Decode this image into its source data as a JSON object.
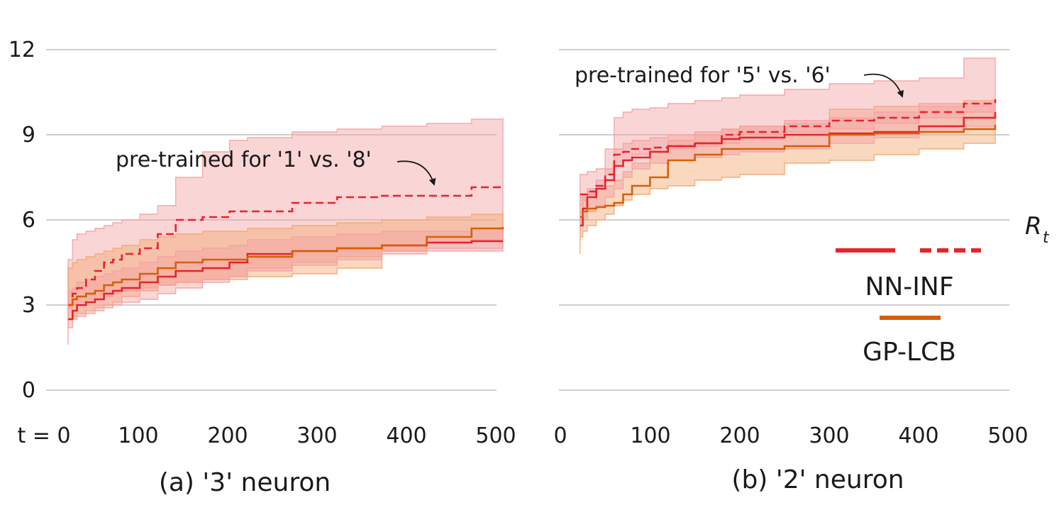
{
  "chart_data": [
    {
      "type": "line",
      "panel": "a",
      "caption": "(a) '3' neuron",
      "x_tick_labels": [
        "t = 0",
        "100",
        "200",
        "300",
        "400",
        "500"
      ],
      "y_tick_labels": [
        "0",
        "3",
        "6",
        "9",
        "12"
      ],
      "xlim": [
        0,
        500
      ],
      "ylim": [
        0,
        12
      ],
      "annotation": "pre-trained for '1' vs. '8'",
      "series": [
        {
          "name": "NN-INF",
          "style": "solid",
          "color": "#e8232a",
          "x": [
            0,
            5,
            10,
            20,
            30,
            40,
            50,
            60,
            80,
            100,
            120,
            150,
            180,
            200,
            250,
            300,
            350,
            400,
            450,
            485
          ],
          "y": [
            2.5,
            2.8,
            3.0,
            3.1,
            3.2,
            3.4,
            3.5,
            3.6,
            3.8,
            4.0,
            4.2,
            4.3,
            4.5,
            4.8,
            4.9,
            5.0,
            5.1,
            5.2,
            5.25,
            5.25
          ],
          "lower": [
            1.6,
            2.2,
            2.5,
            2.6,
            2.7,
            2.8,
            2.9,
            3.0,
            3.1,
            3.2,
            3.4,
            3.6,
            3.8,
            4.0,
            4.2,
            4.4,
            4.6,
            4.8,
            4.9,
            4.9
          ],
          "upper": [
            3.5,
            3.6,
            3.8,
            3.9,
            4.0,
            4.1,
            4.2,
            4.3,
            4.5,
            4.7,
            4.9,
            5.0,
            5.1,
            5.3,
            5.4,
            5.5,
            5.6,
            5.6,
            5.7,
            5.7
          ]
        },
        {
          "name": "NN-INF",
          "style": "dashed",
          "color": "#e8232a",
          "x": [
            0,
            5,
            10,
            20,
            30,
            40,
            50,
            60,
            80,
            100,
            120,
            150,
            180,
            200,
            250,
            300,
            350,
            400,
            450,
            485
          ],
          "y": [
            3.0,
            3.4,
            3.6,
            3.9,
            4.2,
            4.5,
            4.6,
            4.8,
            5.0,
            5.5,
            6.0,
            6.1,
            6.3,
            6.3,
            6.6,
            6.8,
            6.85,
            6.85,
            7.15,
            7.15
          ],
          "lower": [
            2.8,
            2.9,
            3.0,
            3.1,
            3.2,
            3.2,
            3.3,
            3.4,
            3.5,
            3.6,
            3.7,
            3.8,
            3.9,
            4.0,
            4.3,
            4.5,
            4.7,
            4.9,
            5.0,
            5.0
          ],
          "upper": [
            4.6,
            5.3,
            5.5,
            5.6,
            5.7,
            5.8,
            5.9,
            6.0,
            6.2,
            6.5,
            7.5,
            8.4,
            8.8,
            8.9,
            9.1,
            9.2,
            9.3,
            9.4,
            9.55,
            9.6
          ]
        },
        {
          "name": "GP-LCB",
          "style": "solid",
          "color": "#d4600a",
          "x": [
            0,
            5,
            10,
            20,
            30,
            40,
            50,
            60,
            80,
            100,
            120,
            150,
            180,
            200,
            250,
            300,
            350,
            400,
            450,
            485
          ],
          "y": [
            3.0,
            3.2,
            3.3,
            3.4,
            3.5,
            3.7,
            3.8,
            3.9,
            4.1,
            4.3,
            4.5,
            4.6,
            4.6,
            4.7,
            4.9,
            5.0,
            5.1,
            5.4,
            5.7,
            5.75
          ],
          "lower": [
            2.2,
            2.5,
            2.6,
            2.7,
            2.8,
            2.9,
            3.0,
            3.1,
            3.3,
            3.5,
            3.7,
            3.8,
            3.9,
            3.9,
            4.0,
            4.1,
            4.3,
            4.9,
            5.2,
            5.3
          ],
          "upper": [
            4.3,
            4.5,
            4.6,
            4.7,
            4.8,
            4.9,
            5.0,
            5.1,
            5.3,
            5.4,
            5.5,
            5.6,
            5.6,
            5.7,
            5.8,
            5.9,
            6.0,
            6.1,
            6.2,
            6.3
          ]
        }
      ]
    },
    {
      "type": "line",
      "panel": "b",
      "caption": "(b) '2' neuron",
      "x_tick_labels": [
        "0",
        "100",
        "200",
        "300",
        "400",
        "500"
      ],
      "ylim": [
        0,
        12
      ],
      "xlim": [
        0,
        500
      ],
      "annotation": "pre-trained for '5' vs. '6'",
      "series": [
        {
          "name": "NN-INF",
          "style": "solid",
          "color": "#e8232a",
          "x": [
            22,
            25,
            30,
            40,
            50,
            60,
            70,
            80,
            100,
            120,
            150,
            180,
            200,
            250,
            300,
            350,
            400,
            450,
            485
          ],
          "y": [
            5.8,
            6.4,
            6.8,
            7.1,
            7.4,
            7.9,
            8.1,
            8.2,
            8.4,
            8.6,
            8.7,
            8.85,
            8.9,
            9.0,
            9.05,
            9.1,
            9.3,
            9.6,
            9.8
          ],
          "lower": [
            5.5,
            5.8,
            6.0,
            6.3,
            6.5,
            6.8,
            7.1,
            7.5,
            7.8,
            8.0,
            8.1,
            8.2,
            8.3,
            8.4,
            8.5,
            8.7,
            8.9,
            9.1,
            9.3
          ],
          "upper": [
            6.3,
            6.8,
            7.1,
            7.4,
            7.8,
            8.5,
            8.7,
            8.8,
            8.9,
            9.0,
            9.1,
            9.2,
            9.3,
            9.5,
            9.6,
            9.8,
            10.0,
            10.1,
            10.2
          ]
        },
        {
          "name": "NN-INF",
          "style": "dashed",
          "color": "#e8232a",
          "x": [
            22,
            25,
            30,
            40,
            50,
            60,
            70,
            80,
            100,
            120,
            150,
            180,
            200,
            250,
            300,
            350,
            400,
            450,
            485
          ],
          "y": [
            6.9,
            6.9,
            7.0,
            7.2,
            7.6,
            8.3,
            8.4,
            8.5,
            8.55,
            8.6,
            8.7,
            9.0,
            9.1,
            9.3,
            9.5,
            9.6,
            9.8,
            10.1,
            10.25
          ],
          "lower": [
            6.3,
            6.5,
            6.7,
            6.9,
            7.2,
            7.6,
            7.9,
            8.1,
            8.3,
            8.4,
            8.5,
            8.6,
            8.7,
            8.9,
            9.1,
            9.2,
            9.4,
            9.6,
            9.8
          ],
          "upper": [
            7.6,
            7.6,
            7.7,
            7.8,
            8.5,
            9.6,
            9.8,
            9.9,
            9.95,
            10.1,
            10.2,
            10.3,
            10.4,
            10.6,
            10.8,
            10.9,
            11.0,
            11.7,
            11.6
          ]
        },
        {
          "name": "GP-LCB",
          "style": "solid",
          "color": "#d4600a",
          "x": [
            22,
            25,
            30,
            40,
            50,
            60,
            70,
            80,
            100,
            120,
            150,
            180,
            200,
            250,
            300,
            350,
            400,
            450,
            485
          ],
          "y": [
            6.1,
            6.3,
            6.4,
            6.45,
            6.5,
            6.6,
            6.9,
            7.2,
            7.5,
            8.1,
            8.3,
            8.5,
            8.5,
            8.6,
            9.0,
            9.05,
            9.1,
            9.2,
            9.35
          ],
          "lower": [
            4.8,
            5.4,
            5.6,
            5.8,
            6.0,
            6.2,
            6.5,
            6.7,
            6.9,
            7.1,
            7.2,
            7.4,
            7.5,
            7.6,
            8.0,
            8.1,
            8.3,
            8.5,
            8.7
          ],
          "upper": [
            6.8,
            6.9,
            7.0,
            7.1,
            7.2,
            7.4,
            7.7,
            8.0,
            8.4,
            8.8,
            9.0,
            9.2,
            9.3,
            9.4,
            9.9,
            10.0,
            10.1,
            10.2,
            10.3
          ]
        }
      ]
    }
  ],
  "y_axis_label": {
    "main": "R",
    "sub": "t"
  },
  "legend": {
    "entries": [
      {
        "label": "NN-INF",
        "styles": [
          "solid",
          "dashed"
        ],
        "color": "#e8232a"
      },
      {
        "label": "GP-LCB",
        "styles": [
          "solid"
        ],
        "color": "#d4600a"
      }
    ]
  },
  "colors": {
    "nn_inf": "#e8232a",
    "gp_lcb": "#d4600a",
    "nn_inf_band": "#f4a1a3",
    "gp_lcb_band": "#f2a871",
    "grid": "#bdbdbd"
  }
}
